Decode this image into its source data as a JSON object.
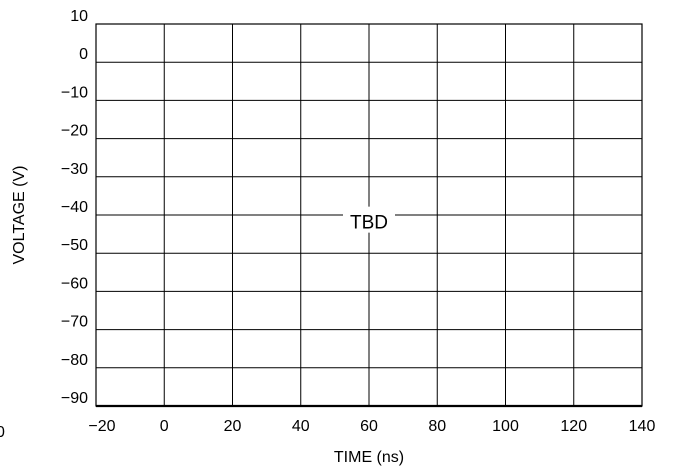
{
  "chart_data": {
    "type": "line",
    "series": [],
    "xlabel": "TIME (ns)",
    "ylabel": "VOLTAGE (V)",
    "xlim": [
      -20,
      140
    ],
    "ylim": [
      -90,
      10
    ],
    "x_ticks": [
      -20,
      0,
      20,
      40,
      60,
      80,
      100,
      120,
      140
    ],
    "x_tick_labels": [
      "−20",
      "0",
      "20",
      "40",
      "60",
      "80",
      "100",
      "120",
      "140"
    ],
    "y_ticks": [
      10,
      0,
      -10,
      -20,
      -30,
      -40,
      -50,
      -60,
      -70,
      -80,
      -90
    ],
    "y_tick_labels": [
      "10",
      "0",
      "−10",
      "−20",
      "−30",
      "−40",
      "−50",
      "−60",
      "−70",
      "−80",
      "−90"
    ],
    "grid": true,
    "annotation": {
      "text": "TBD",
      "x": 60,
      "y": -42
    },
    "stray_label": "0"
  }
}
